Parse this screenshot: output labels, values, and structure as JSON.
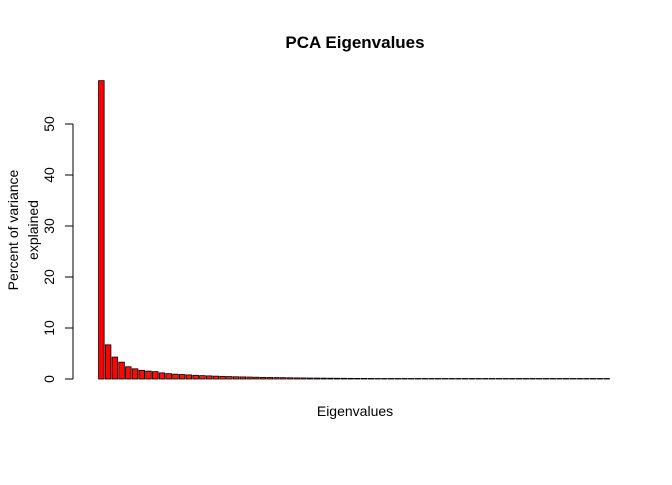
{
  "chart_data": {
    "type": "bar",
    "title": "PCA Eigenvalues",
    "xlabel": "Eigenvalues",
    "ylabel_lines": [
      "Percent of variance",
      "explained"
    ],
    "ylim": [
      0,
      60
    ],
    "yticks": [
      0,
      10,
      20,
      30,
      40,
      50
    ],
    "grid": false,
    "legend": "none",
    "colors": {
      "start": "#ff0000",
      "end": "#ffffff",
      "stroke": "#000000"
    },
    "values": [
      58.5,
      6.7,
      4.3,
      3.3,
      2.4,
      2.0,
      1.7,
      1.55,
      1.45,
      1.2,
      1.05,
      0.95,
      0.88,
      0.8,
      0.72,
      0.66,
      0.61,
      0.56,
      0.52,
      0.48,
      0.44,
      0.41,
      0.38,
      0.35,
      0.32,
      0.3,
      0.28,
      0.26,
      0.24,
      0.22,
      0.21,
      0.19,
      0.18,
      0.17,
      0.16,
      0.15,
      0.14,
      0.13,
      0.12,
      0.115,
      0.11,
      0.1,
      0.095,
      0.09,
      0.085,
      0.08,
      0.075,
      0.07,
      0.066,
      0.062,
      0.058,
      0.055,
      0.052,
      0.049,
      0.046,
      0.043,
      0.041,
      0.039,
      0.037,
      0.035,
      0.033,
      0.031,
      0.029,
      0.027,
      0.025,
      0.023,
      0.021,
      0.019,
      0.017,
      0.015,
      0.013,
      0.011,
      0.009,
      0.007,
      0.005,
      0.003
    ]
  }
}
